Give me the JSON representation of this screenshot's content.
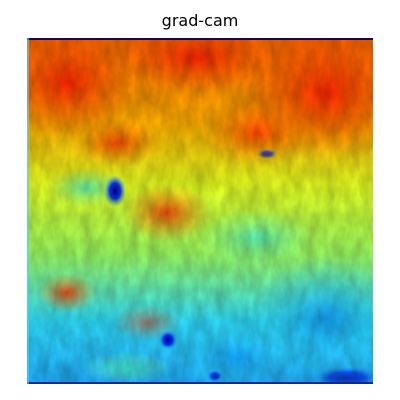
{
  "figure": {
    "title": "grad-cam"
  },
  "colormap": {
    "name": "jet",
    "stops": [
      "#00007f",
      "#0000ff",
      "#00ffff",
      "#7fff7f",
      "#ffff00",
      "#ff0000",
      "#7f0000"
    ]
  }
}
